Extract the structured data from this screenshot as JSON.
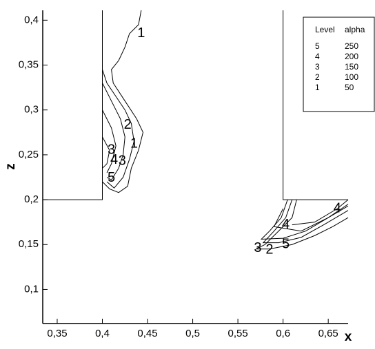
{
  "chart_data": {
    "type": "contour",
    "x_label": "x",
    "y_label": "z",
    "xlim": [
      0.334,
      0.672
    ],
    "ylim": [
      0.062,
      0.411
    ],
    "xticks": [
      {
        "value": 0.35,
        "label": "0,35"
      },
      {
        "value": 0.4,
        "label": "0,4"
      },
      {
        "value": 0.45,
        "label": "0,45"
      },
      {
        "value": 0.5,
        "label": "0,5"
      },
      {
        "value": 0.55,
        "label": "0,55"
      },
      {
        "value": 0.6,
        "label": "0,6"
      },
      {
        "value": 0.65,
        "label": "0,65"
      }
    ],
    "yticks": [
      {
        "value": 0.1,
        "label": "0,1"
      },
      {
        "value": 0.15,
        "label": "0,15"
      },
      {
        "value": 0.2,
        "label": "0,2"
      },
      {
        "value": 0.25,
        "label": "0,25"
      },
      {
        "value": 0.3,
        "label": "0,3"
      },
      {
        "value": 0.35,
        "label": "0,35"
      },
      {
        "value": 0.4,
        "label": "0,4"
      }
    ],
    "boundaries": [
      {
        "x": [
          0.334,
          0.4,
          0.4
        ],
        "z": [
          0.2,
          0.2,
          0.411
        ]
      },
      {
        "x": [
          0.6,
          0.6,
          0.672
        ],
        "z": [
          0.411,
          0.2,
          0.2
        ]
      }
    ],
    "contours": [
      {
        "x": [
          0.443,
          0.44,
          0.43,
          0.425,
          0.418,
          0.41,
          0.412,
          0.425,
          0.438,
          0.445,
          0.44,
          0.432,
          0.428,
          0.418,
          0.408,
          0.4
        ],
        "z": [
          0.411,
          0.395,
          0.385,
          0.37,
          0.355,
          0.345,
          0.33,
          0.31,
          0.29,
          0.275,
          0.255,
          0.235,
          0.215,
          0.208,
          0.212,
          0.22
        ]
      },
      {
        "x": [
          0.4,
          0.405,
          0.415,
          0.425,
          0.432,
          0.435,
          0.43,
          0.423,
          0.413,
          0.405
        ],
        "z": [
          0.345,
          0.33,
          0.315,
          0.3,
          0.285,
          0.265,
          0.245,
          0.225,
          0.213,
          0.22
        ]
      },
      {
        "x": [
          0.4,
          0.41,
          0.42,
          0.425,
          0.423,
          0.418,
          0.41,
          0.405
        ],
        "z": [
          0.33,
          0.31,
          0.29,
          0.27,
          0.25,
          0.235,
          0.222,
          0.225
        ]
      },
      {
        "x": [
          0.4,
          0.41,
          0.415,
          0.41,
          0.405
        ],
        "z": [
          0.3,
          0.28,
          0.26,
          0.24,
          0.23
        ]
      },
      {
        "x": [
          0.4,
          0.408,
          0.405,
          0.4
        ],
        "z": [
          0.27,
          0.255,
          0.24,
          0.235
        ]
      },
      {
        "x": [
          0.615,
          0.61,
          0.595,
          0.58,
          0.57,
          0.585,
          0.61,
          0.635,
          0.655,
          0.672
        ],
        "z": [
          0.2,
          0.18,
          0.165,
          0.15,
          0.145,
          0.145,
          0.15,
          0.16,
          0.17,
          0.18
        ]
      },
      {
        "x": [
          0.61,
          0.603,
          0.59,
          0.578,
          0.595,
          0.62,
          0.645,
          0.672
        ],
        "z": [
          0.2,
          0.18,
          0.165,
          0.152,
          0.152,
          0.158,
          0.172,
          0.188
        ]
      },
      {
        "x": [
          0.605,
          0.598,
          0.585,
          0.576,
          0.6,
          0.625,
          0.65,
          0.672
        ],
        "z": [
          0.2,
          0.18,
          0.165,
          0.156,
          0.157,
          0.165,
          0.18,
          0.193
        ]
      },
      {
        "x": [
          0.6,
          0.59,
          0.62,
          0.65,
          0.672
        ],
        "z": [
          0.19,
          0.17,
          0.165,
          0.18,
          0.195
        ]
      },
      {
        "x": [
          0.61,
          0.635,
          0.66,
          0.672
        ],
        "z": [
          0.172,
          0.175,
          0.19,
          0.2
        ]
      }
    ],
    "contour_labels": [
      {
        "label": 1,
        "x": 0.443,
        "z": 0.385
      },
      {
        "label": 2,
        "x": 0.428,
        "z": 0.283
      },
      {
        "label": 1,
        "x": 0.435,
        "z": 0.262
      },
      {
        "label": 3,
        "x": 0.41,
        "z": 0.255
      },
      {
        "label": 4,
        "x": 0.413,
        "z": 0.244
      },
      {
        "label": 3,
        "x": 0.422,
        "z": 0.243
      },
      {
        "label": 5,
        "x": 0.41,
        "z": 0.224
      },
      {
        "label": 4,
        "x": 0.603,
        "z": 0.172
      },
      {
        "label": 3,
        "x": 0.572,
        "z": 0.146
      },
      {
        "label": 2,
        "x": 0.585,
        "z": 0.144
      },
      {
        "label": 5,
        "x": 0.603,
        "z": 0.15
      },
      {
        "label": 4,
        "x": 0.66,
        "z": 0.19
      }
    ],
    "legend": {
      "headers": [
        "Level",
        "alpha"
      ],
      "rows": [
        [
          5,
          250
        ],
        [
          4,
          200
        ],
        [
          3,
          150
        ],
        [
          2,
          100
        ],
        [
          1,
          50
        ]
      ]
    }
  }
}
